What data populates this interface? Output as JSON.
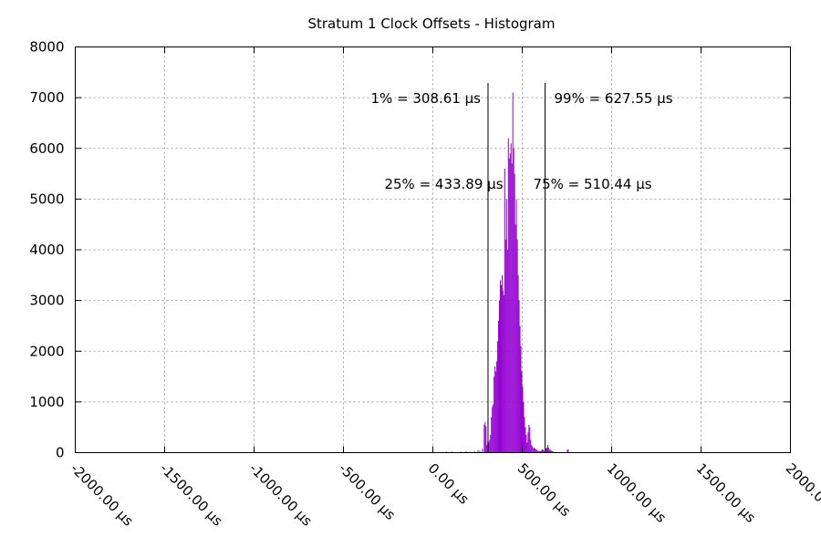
{
  "chart_data": {
    "type": "bar",
    "title": "Stratum 1 Clock Offsets - Histogram",
    "xlabel": "",
    "ylabel": "",
    "xlim": [
      -2000,
      2000
    ],
    "ylim": [
      0,
      8000
    ],
    "grid": true,
    "bar_color": "#9400d3",
    "x_unit": "µs",
    "x_ticks": [
      {
        "value": -2000,
        "label": "-2000.00 µs"
      },
      {
        "value": -1500,
        "label": "-1500.00 µs"
      },
      {
        "value": -1000,
        "label": "-1000.00 µs"
      },
      {
        "value": -500,
        "label": "-500.00 µs"
      },
      {
        "value": 0,
        "label": "0.00 µs"
      },
      {
        "value": 500,
        "label": "500.00 µs"
      },
      {
        "value": 1000,
        "label": "1000.00 µs"
      },
      {
        "value": 1500,
        "label": "1500.00 µs"
      },
      {
        "value": 2000,
        "label": "2000.00 µs"
      }
    ],
    "y_ticks": [
      0,
      1000,
      2000,
      3000,
      4000,
      5000,
      6000,
      7000,
      8000
    ],
    "percentiles": [
      {
        "label": "1% = 308.61 µs",
        "value": 308.61,
        "align": "left",
        "row": "top"
      },
      {
        "label": "99% = 627.55 µs",
        "value": 627.55,
        "align": "right",
        "row": "top"
      },
      {
        "label": "25% = 433.89 µs",
        "value": 433.89,
        "align": "left",
        "row": "mid"
      },
      {
        "label": "75% = 510.44 µs",
        "value": 510.44,
        "align": "right",
        "row": "mid"
      }
    ],
    "bin_width": 5,
    "series": [
      {
        "x": [
          75,
          105,
          155,
          180,
          185,
          205,
          230,
          250,
          260,
          275,
          285,
          290,
          295,
          300,
          305,
          310,
          315,
          320,
          325,
          330,
          335,
          340,
          345,
          350,
          355,
          360,
          365,
          370,
          375,
          380,
          385,
          390,
          395,
          400,
          405,
          410,
          415,
          420,
          425,
          430,
          435,
          440,
          445,
          450,
          455,
          460,
          465,
          470,
          475,
          480,
          485,
          490,
          495,
          500,
          505,
          510,
          515,
          520,
          525,
          530,
          535,
          540,
          545,
          550,
          555,
          560,
          565,
          570,
          575,
          580,
          585,
          590,
          595,
          600,
          605,
          610,
          615,
          620,
          625,
          630,
          635,
          640,
          645,
          650,
          655,
          660,
          665,
          670,
          750,
          755
        ],
        "values": [
          20,
          20,
          20,
          20,
          20,
          20,
          30,
          50,
          40,
          80,
          550,
          600,
          520,
          150,
          220,
          200,
          250,
          350,
          700,
          900,
          950,
          1500,
          1700,
          1600,
          1800,
          2200,
          2600,
          3000,
          3400,
          3300,
          3500,
          3200,
          3100,
          5600,
          4200,
          5000,
          4000,
          6200,
          5800,
          5900,
          6100,
          5700,
          7100,
          6000,
          5500,
          4500,
          5000,
          4200,
          3500,
          3000,
          2500,
          2100,
          1600,
          1300,
          1000,
          700,
          500,
          350,
          200,
          400,
          550,
          500,
          250,
          150,
          120,
          80,
          100,
          80,
          70,
          50,
          40,
          30,
          30,
          30,
          40,
          60,
          60,
          30,
          60,
          80,
          100,
          150,
          100,
          60,
          50,
          40,
          30,
          20,
          60,
          60
        ]
      }
    ]
  }
}
